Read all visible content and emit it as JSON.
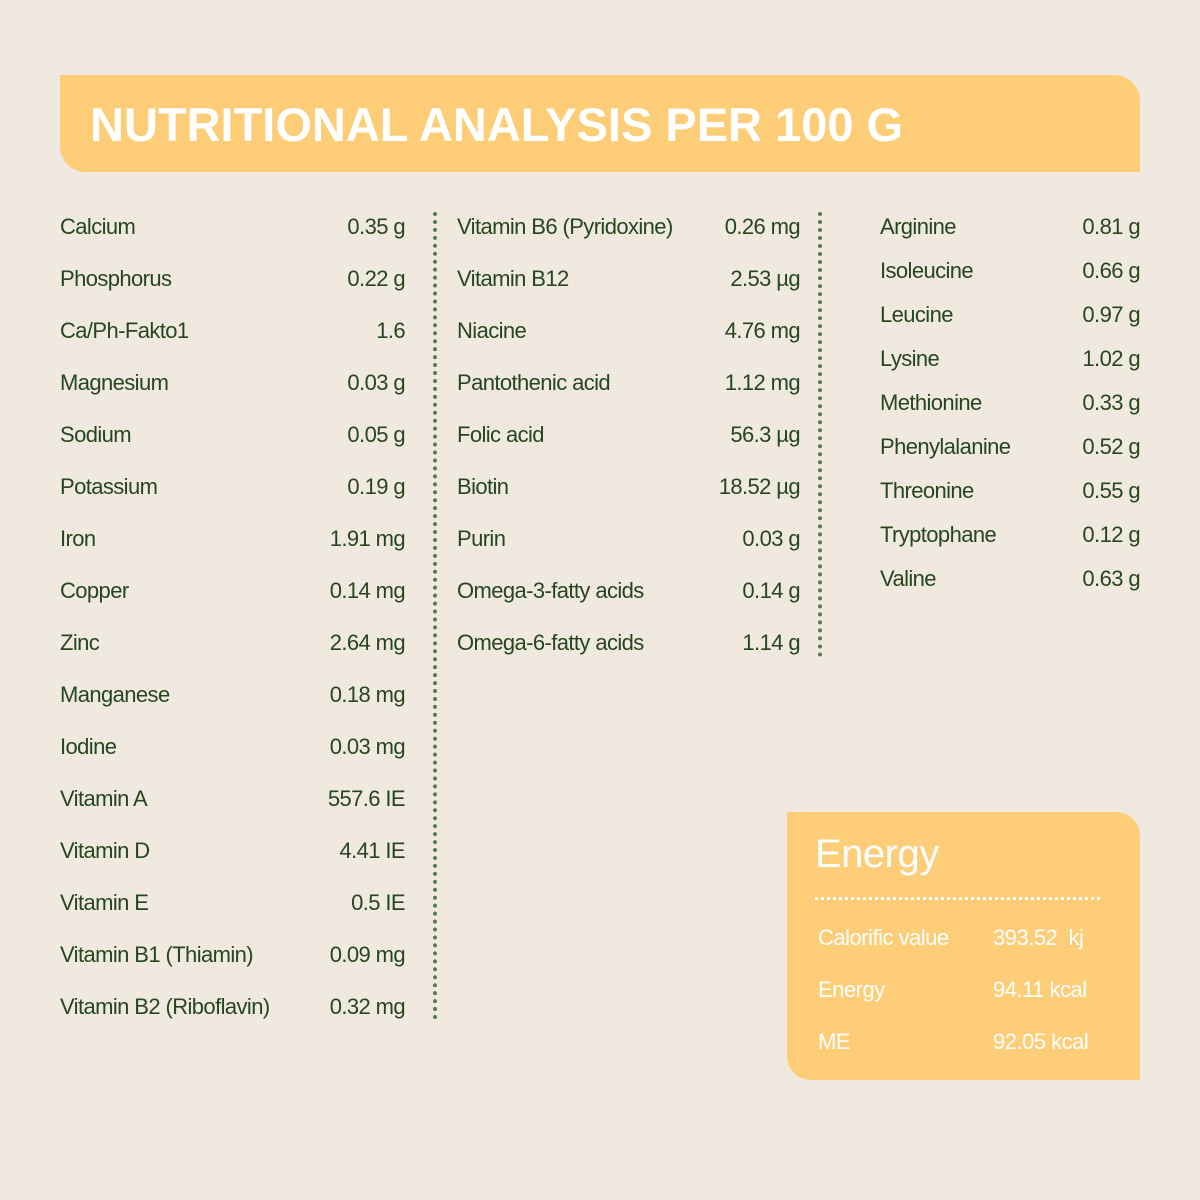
{
  "header": {
    "title": "NUTRITIONAL ANALYSIS PER 100 G"
  },
  "columns": [
    {
      "rows": [
        [
          "Calcium",
          "0.35 g"
        ],
        [
          "Phosphorus",
          "0.22 g"
        ],
        [
          "Ca/Ph-Fakto1",
          "1.6"
        ],
        [
          "Magnesium",
          "0.03 g"
        ],
        [
          "Sodium",
          "0.05 g"
        ],
        [
          "Potassium",
          "0.19 g"
        ],
        [
          "Iron",
          "1.91 mg"
        ],
        [
          "Copper",
          "0.14 mg"
        ],
        [
          "Zinc",
          "2.64 mg"
        ],
        [
          "Manganese",
          "0.18 mg"
        ],
        [
          "Iodine",
          "0.03 mg"
        ],
        [
          "Vitamin A",
          "557.6 IE"
        ],
        [
          "Vitamin D",
          "4.41 IE"
        ],
        [
          "Vitamin E",
          "0.5 IE"
        ],
        [
          "Vitamin B1 (Thiamin)",
          "0.09 mg"
        ],
        [
          "Vitamin B2 (Riboflavin)",
          "0.32 mg"
        ]
      ]
    },
    {
      "rows": [
        [
          "Vitamin B6 (Pyridoxine)",
          "0.26 mg"
        ],
        [
          "Vitamin B12",
          "2.53 µg"
        ],
        [
          "Niacine",
          "4.76 mg"
        ],
        [
          "Pantothenic acid",
          "1.12 mg"
        ],
        [
          "Folic acid",
          "56.3 µg"
        ],
        [
          "Biotin",
          "18.52 µg"
        ],
        [
          "Purin",
          "0.03 g"
        ],
        [
          "Omega-3-fatty acids",
          "0.14 g"
        ],
        [
          "Omega-6-fatty acids",
          "1.14 g"
        ]
      ]
    },
    {
      "rows": [
        [
          "Arginine",
          "0.81 g"
        ],
        [
          "Isoleucine",
          "0.66 g"
        ],
        [
          "Leucine",
          "0.97 g"
        ],
        [
          "Lysine",
          "1.02 g"
        ],
        [
          "Methionine",
          "0.33 g"
        ],
        [
          "Phenylalanine",
          "0.52 g"
        ],
        [
          "Threonine",
          "0.55 g"
        ],
        [
          "Tryptophane",
          "0.12 g"
        ],
        [
          "Valine",
          "0.63 g"
        ]
      ]
    }
  ],
  "energy": {
    "title": "Energy",
    "rows": [
      [
        "Calorific value",
        "393.52  kj"
      ],
      [
        "Energy",
        "94.11 kcal"
      ],
      [
        "ME",
        "92.05 kcal"
      ]
    ]
  }
}
